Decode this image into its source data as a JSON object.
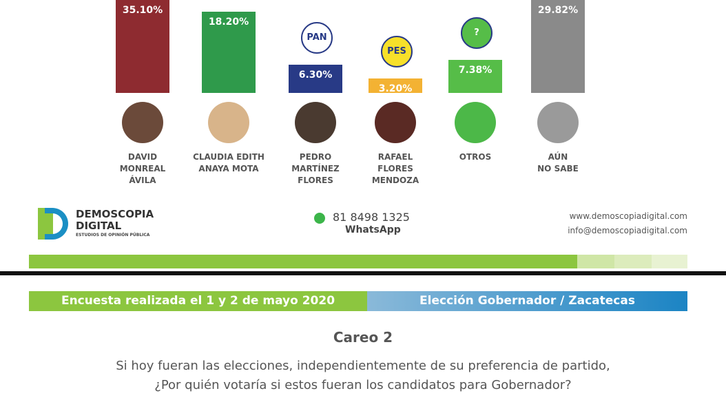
{
  "chart_data": {
    "type": "bar",
    "categories": [
      "DAVID\nMONREAL\nÁVILA",
      "CLAUDIA EDITH\nANAYA MOTA",
      "PEDRO\nMARTÍNEZ\nFLORES",
      "RAFAEL\nFLORES\nMENDOZA",
      "OTROS",
      "AÚN\nNO SABE"
    ],
    "values": [
      35.1,
      18.2,
      6.3,
      3.2,
      7.38,
      29.82
    ],
    "value_labels": [
      "35.10%",
      "18.20%",
      "6.30%",
      "3.20%",
      "7.38%",
      "29.82%"
    ],
    "colors": [
      "#8e2b30",
      "#2f9a4b",
      "#283a86",
      "#f3b233",
      "#56bd48",
      "#8a8a8a"
    ],
    "icons": [
      null,
      null,
      "PAN",
      "PES",
      "?",
      null
    ]
  },
  "footer": {
    "brand": "DEMOSCOPIA\nDIGITAL",
    "tagline": "ESTUDIOS DE OPINIÓN PÚBLICA",
    "phone": "81 8498 1325",
    "phone_note": "WhatsApp",
    "web": "www.demoscopiadigital.com",
    "email": "info@demoscopiadigital.com"
  },
  "banner": {
    "left": "Encuesta realizada el 1 y 2 de mayo 2020",
    "right": "Elección Gobernador / Zacatecas"
  },
  "question": {
    "title": "Careo 2",
    "line1": "Si hoy fueran las elecciones, independientemente de su preferencia de partido,",
    "line2": "¿Por quién votaría si estos fueran los candidatos para Gobernador?"
  }
}
